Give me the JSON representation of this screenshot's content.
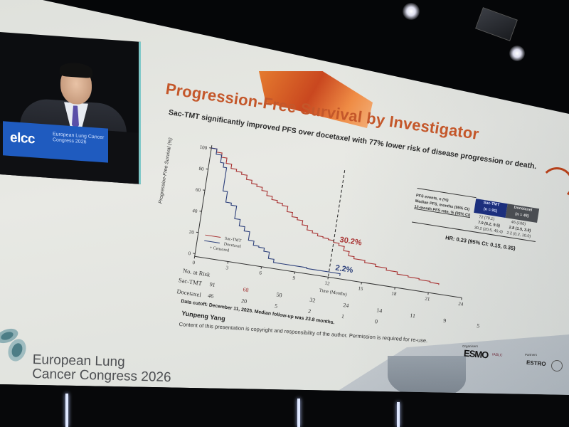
{
  "scene": {
    "description": "Photo of conference presentation screen",
    "screen_bg": "#e3e5e0",
    "room_bg": "#050608"
  },
  "video_inset": {
    "congress_logo": "elcc",
    "congress_sub": "European Lung Cancer Congress 2026",
    "panel_color": "#1f5bbf"
  },
  "slide": {
    "title": "Progression-Free Survival by Investigator",
    "subtitle": "Sac-TMT significantly improved PFS over docetaxel with 77% lower risk of disease progression or death.",
    "title_color": "#c4572a",
    "data_cutoff": "Data cutoff: December 11, 2025. Median follow-up was 23.8 months.",
    "presenter": "Yunpeng Yang",
    "copyright": "Content of this presentation is copyright and responsibility of the author. Permission is required for re-use."
  },
  "summary_table": {
    "columns": [
      {
        "name": "Sac-TMT",
        "n": "(n = 91)",
        "color": "#1c2f7d"
      },
      {
        "name": "Docetaxel",
        "n": "(n = 46)",
        "color": "#4a4d52"
      }
    ],
    "rows": [
      {
        "label": "PFS events, n (%)",
        "sac_tmt": "72 (79.1)",
        "docetaxel": "46 (100)"
      },
      {
        "label": "Median PFS, months (95% CI)",
        "sac_tmt": "7.9 (6.2, 9.5)",
        "docetaxel": "2.8 (1.5, 3.8)"
      },
      {
        "label": "12-month PFS rate, % (95% CI)",
        "sac_tmt": "30.2 (20.5, 40.4)",
        "docetaxel": "2.2 (0.2, 10.0)"
      }
    ],
    "hr": "HR: 0.23 (95% CI: 0.15, 0.35)"
  },
  "chart_data": {
    "type": "line",
    "title": "Progression-Free Survival by Investigator",
    "xlabel": "Time (Months)",
    "ylabel": "Progression-Free Survival (%)",
    "xlim": [
      0,
      24
    ],
    "ylim": [
      0,
      100
    ],
    "x_ticks": [
      0,
      3,
      6,
      9,
      12,
      15,
      18,
      21,
      24
    ],
    "y_ticks": [
      0,
      20,
      40,
      60,
      80,
      100
    ],
    "grid": false,
    "legend": [
      "Sac-TMT",
      "Docetaxel",
      "+ Censored"
    ],
    "legend_position": "lower-left",
    "series": [
      {
        "name": "Sac-TMT",
        "color": "#a83232",
        "x": [
          0,
          0.5,
          1,
          1.5,
          2,
          2.5,
          3,
          3.5,
          4,
          4.5,
          5,
          5.5,
          6,
          6.5,
          7,
          7.5,
          8,
          8.5,
          9,
          9.5,
          10,
          10.5,
          11,
          11.5,
          12,
          12.5,
          13,
          13.5,
          14,
          15,
          16,
          17,
          18,
          19,
          20,
          21,
          21.8
        ],
        "y": [
          100,
          97,
          93,
          88,
          84,
          82,
          80,
          76,
          73,
          71,
          68,
          64,
          61,
          59,
          57,
          52,
          48,
          46,
          42,
          38,
          36,
          34,
          33,
          32,
          30.2,
          28,
          24,
          20,
          18,
          16,
          14,
          12,
          10,
          9,
          8,
          7,
          6
        ]
      },
      {
        "name": "Docetaxel",
        "color": "#2c3f7a",
        "x": [
          0,
          0.5,
          1,
          1.3,
          1.6,
          2,
          2.5,
          3,
          3.5,
          4,
          4.5,
          5,
          5.5,
          6,
          6.5,
          7,
          8,
          9,
          10,
          11,
          12,
          13
        ],
        "y": [
          100,
          95,
          88,
          84,
          62,
          52,
          50,
          38,
          32,
          28,
          20,
          16,
          15,
          12,
          6,
          3,
          3,
          3,
          2.2,
          2.2,
          2.2,
          0
        ]
      }
    ],
    "annotations": [
      {
        "text": "30.2%",
        "x": 12,
        "y": 30.2,
        "color": "#a83232"
      },
      {
        "text": "2.2%",
        "x": 12,
        "y": 2.2,
        "color": "#2c3f7a"
      },
      {
        "text": "12-month reference line",
        "x": 12,
        "style": "dashed"
      }
    ],
    "risk_table": {
      "header": "No. at Risk",
      "times": [
        0,
        3,
        6,
        9,
        12,
        15,
        18,
        21,
        24
      ],
      "rows": [
        {
          "label": "Sac-TMT",
          "values": [
            91,
            68,
            50,
            32,
            24,
            14,
            11,
            9,
            5
          ]
        },
        {
          "label": "Docetaxel",
          "values": [
            46,
            20,
            5,
            2,
            1,
            0,
            null,
            null,
            null
          ]
        }
      ]
    }
  },
  "footer": {
    "congress_line1": "European Lung",
    "congress_line2": "Cancer Congress 2026",
    "organisers_label": "Organisers",
    "organisers": [
      "ESMO",
      "IASLC"
    ],
    "partners_label": "Partners",
    "partners": [
      "ESTRO",
      "EACTS"
    ]
  }
}
